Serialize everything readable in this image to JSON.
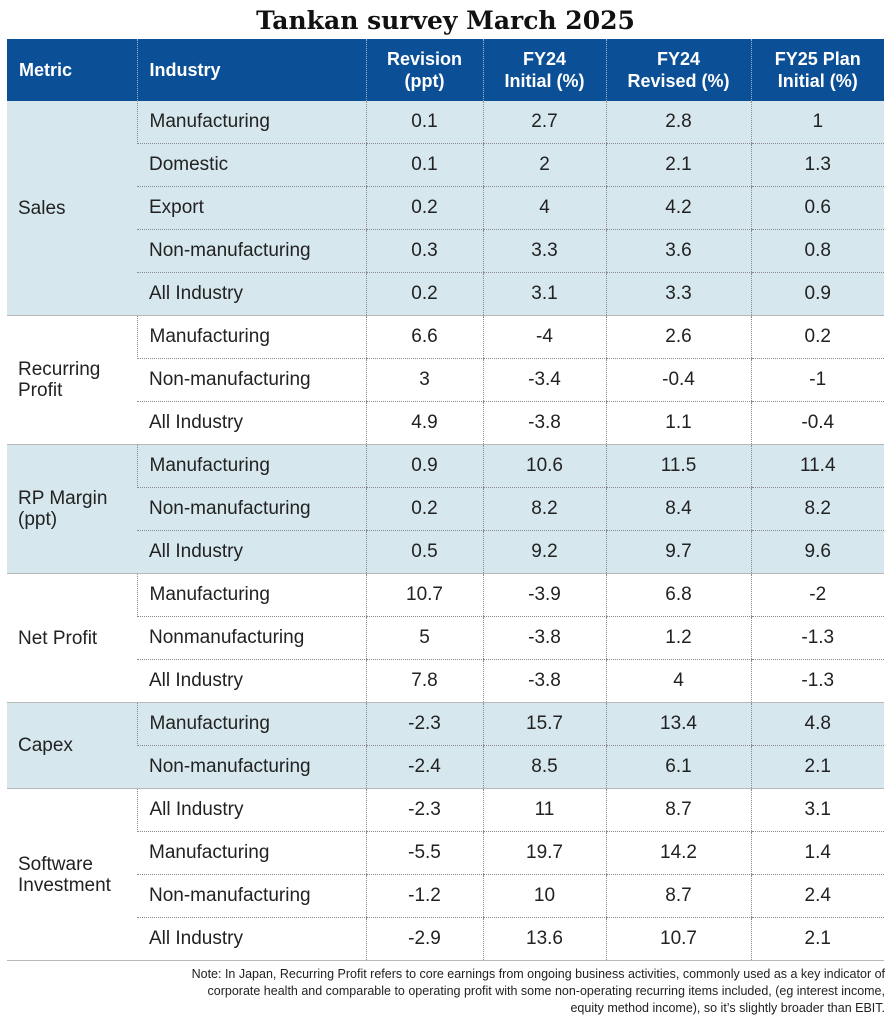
{
  "title": "Tankan survey March 2025",
  "headers": {
    "metric": "Metric",
    "industry": "Industry",
    "revision_l1": "Revision",
    "revision_l2": "(ppt)",
    "fy24i_l1": "FY24",
    "fy24i_l2": "Initial (%)",
    "fy24r_l1": "FY24",
    "fy24r_l2": "Revised (%)",
    "fy25_l1": "FY25 Plan",
    "fy25_l2": "Initial (%)"
  },
  "groups": [
    {
      "metric_lines": [
        "Sales"
      ],
      "rows": [
        {
          "industry": "Manufacturing",
          "revision": "0.1",
          "fy24_initial": "2.7",
          "fy24_revised": "2.8",
          "fy25_plan": "1"
        },
        {
          "industry": "Domestic",
          "revision": "0.1",
          "fy24_initial": "2",
          "fy24_revised": "2.1",
          "fy25_plan": "1.3"
        },
        {
          "industry": "Export",
          "revision": "0.2",
          "fy24_initial": "4",
          "fy24_revised": "4.2",
          "fy25_plan": "0.6"
        },
        {
          "industry": "Non-manufacturing",
          "revision": "0.3",
          "fy24_initial": "3.3",
          "fy24_revised": "3.6",
          "fy25_plan": "0.8"
        },
        {
          "industry": "All Industry",
          "revision": "0.2",
          "fy24_initial": "3.1",
          "fy24_revised": "3.3",
          "fy25_plan": "0.9"
        }
      ]
    },
    {
      "metric_lines": [
        "Recurring",
        "Profit"
      ],
      "rows": [
        {
          "industry": "Manufacturing",
          "revision": "6.6",
          "fy24_initial": "-4",
          "fy24_revised": "2.6",
          "fy25_plan": "0.2"
        },
        {
          "industry": "Non-manufacturing",
          "revision": "3",
          "fy24_initial": "-3.4",
          "fy24_revised": "-0.4",
          "fy25_plan": "-1"
        },
        {
          "industry": "All Industry",
          "revision": "4.9",
          "fy24_initial": "-3.8",
          "fy24_revised": "1.1",
          "fy25_plan": "-0.4"
        }
      ]
    },
    {
      "metric_lines": [
        "RP Margin",
        "(ppt)"
      ],
      "rows": [
        {
          "industry": "Manufacturing",
          "revision": "0.9",
          "fy24_initial": "10.6",
          "fy24_revised": "11.5",
          "fy25_plan": "11.4"
        },
        {
          "industry": "Non-manufacturing",
          "revision": "0.2",
          "fy24_initial": "8.2",
          "fy24_revised": "8.4",
          "fy25_plan": "8.2"
        },
        {
          "industry": "All Industry",
          "revision": "0.5",
          "fy24_initial": "9.2",
          "fy24_revised": "9.7",
          "fy25_plan": "9.6"
        }
      ]
    },
    {
      "metric_lines": [
        "Net Profit"
      ],
      "rows": [
        {
          "industry": "Manufacturing",
          "revision": "10.7",
          "fy24_initial": "-3.9",
          "fy24_revised": "6.8",
          "fy25_plan": "-2"
        },
        {
          "industry": "Nonmanufacturing",
          "revision": "5",
          "fy24_initial": "-3.8",
          "fy24_revised": "1.2",
          "fy25_plan": "-1.3"
        },
        {
          "industry": "All Industry",
          "revision": "7.8",
          "fy24_initial": "-3.8",
          "fy24_revised": "4",
          "fy25_plan": "-1.3"
        }
      ]
    },
    {
      "metric_lines": [
        "Capex"
      ],
      "rows": [
        {
          "industry": "Manufacturing",
          "revision": "-2.3",
          "fy24_initial": "15.7",
          "fy24_revised": "13.4",
          "fy25_plan": "4.8"
        },
        {
          "industry": "Non-manufacturing",
          "revision": "-2.4",
          "fy24_initial": "8.5",
          "fy24_revised": "6.1",
          "fy25_plan": "2.1"
        }
      ]
    },
    {
      "metric_lines": [
        "Software",
        "Investment"
      ],
      "rows": [
        {
          "industry": "All Industry",
          "revision": "-2.3",
          "fy24_initial": "11",
          "fy24_revised": "8.7",
          "fy25_plan": "3.1"
        },
        {
          "industry": "Manufacturing",
          "revision": "-5.5",
          "fy24_initial": "19.7",
          "fy24_revised": "14.2",
          "fy25_plan": "1.4"
        },
        {
          "industry": "Non-manufacturing",
          "revision": "-1.2",
          "fy24_initial": "10",
          "fy24_revised": "8.7",
          "fy25_plan": "2.4"
        },
        {
          "industry": "All Industry",
          "revision": "-2.9",
          "fy24_initial": "13.6",
          "fy24_revised": "10.7",
          "fy25_plan": "2.1"
        }
      ]
    }
  ],
  "colors": {
    "header_bg": "#0b4f96",
    "header_text": "#ffffff",
    "shade": "#d6e8ee"
  },
  "note_lines": [
    "Note: In Japan, Recurring Profit refers to core earnings from ongoing business activities, commonly used as a key indicator of",
    "corporate health and comparable to operating profit with some non-operating recurring items included, (eg interest income,",
    "equity method income), so it’s slightly broader than EBIT."
  ],
  "chart_data": {
    "type": "table",
    "title": "Tankan survey March 2025",
    "columns": [
      "Metric",
      "Industry",
      "Revision (ppt)",
      "FY24 Initial (%)",
      "FY24 Revised (%)",
      "FY25 Plan Initial (%)"
    ],
    "rows": [
      [
        "Sales",
        "Manufacturing",
        0.1,
        2.7,
        2.8,
        1
      ],
      [
        "Sales",
        "Domestic",
        0.1,
        2,
        2.1,
        1.3
      ],
      [
        "Sales",
        "Export",
        0.2,
        4,
        4.2,
        0.6
      ],
      [
        "Sales",
        "Non-manufacturing",
        0.3,
        3.3,
        3.6,
        0.8
      ],
      [
        "Sales",
        "All Industry",
        0.2,
        3.1,
        3.3,
        0.9
      ],
      [
        "Recurring Profit",
        "Manufacturing",
        6.6,
        -4,
        2.6,
        0.2
      ],
      [
        "Recurring Profit",
        "Non-manufacturing",
        3,
        -3.4,
        -0.4,
        -1
      ],
      [
        "Recurring Profit",
        "All Industry",
        4.9,
        -3.8,
        1.1,
        -0.4
      ],
      [
        "RP Margin (ppt)",
        "Manufacturing",
        0.9,
        10.6,
        11.5,
        11.4
      ],
      [
        "RP Margin (ppt)",
        "Non-manufacturing",
        0.2,
        8.2,
        8.4,
        8.2
      ],
      [
        "RP Margin (ppt)",
        "All Industry",
        0.5,
        9.2,
        9.7,
        9.6
      ],
      [
        "Net Profit",
        "Manufacturing",
        10.7,
        -3.9,
        6.8,
        -2
      ],
      [
        "Net Profit",
        "Nonmanufacturing",
        5,
        -3.8,
        1.2,
        -1.3
      ],
      [
        "Net Profit",
        "All Industry",
        7.8,
        -3.8,
        4,
        -1.3
      ],
      [
        "Capex",
        "Manufacturing",
        -2.3,
        15.7,
        13.4,
        4.8
      ],
      [
        "Capex",
        "Non-manufacturing",
        -2.4,
        8.5,
        6.1,
        2.1
      ],
      [
        "Software Investment",
        "All Industry",
        -2.3,
        11,
        8.7,
        3.1
      ],
      [
        "Software Investment",
        "Manufacturing",
        -5.5,
        19.7,
        14.2,
        1.4
      ],
      [
        "Software Investment",
        "Non-manufacturing",
        -1.2,
        10,
        8.7,
        2.4
      ],
      [
        "Software Investment",
        "All Industry",
        -2.9,
        13.6,
        10.7,
        2.1
      ]
    ]
  }
}
